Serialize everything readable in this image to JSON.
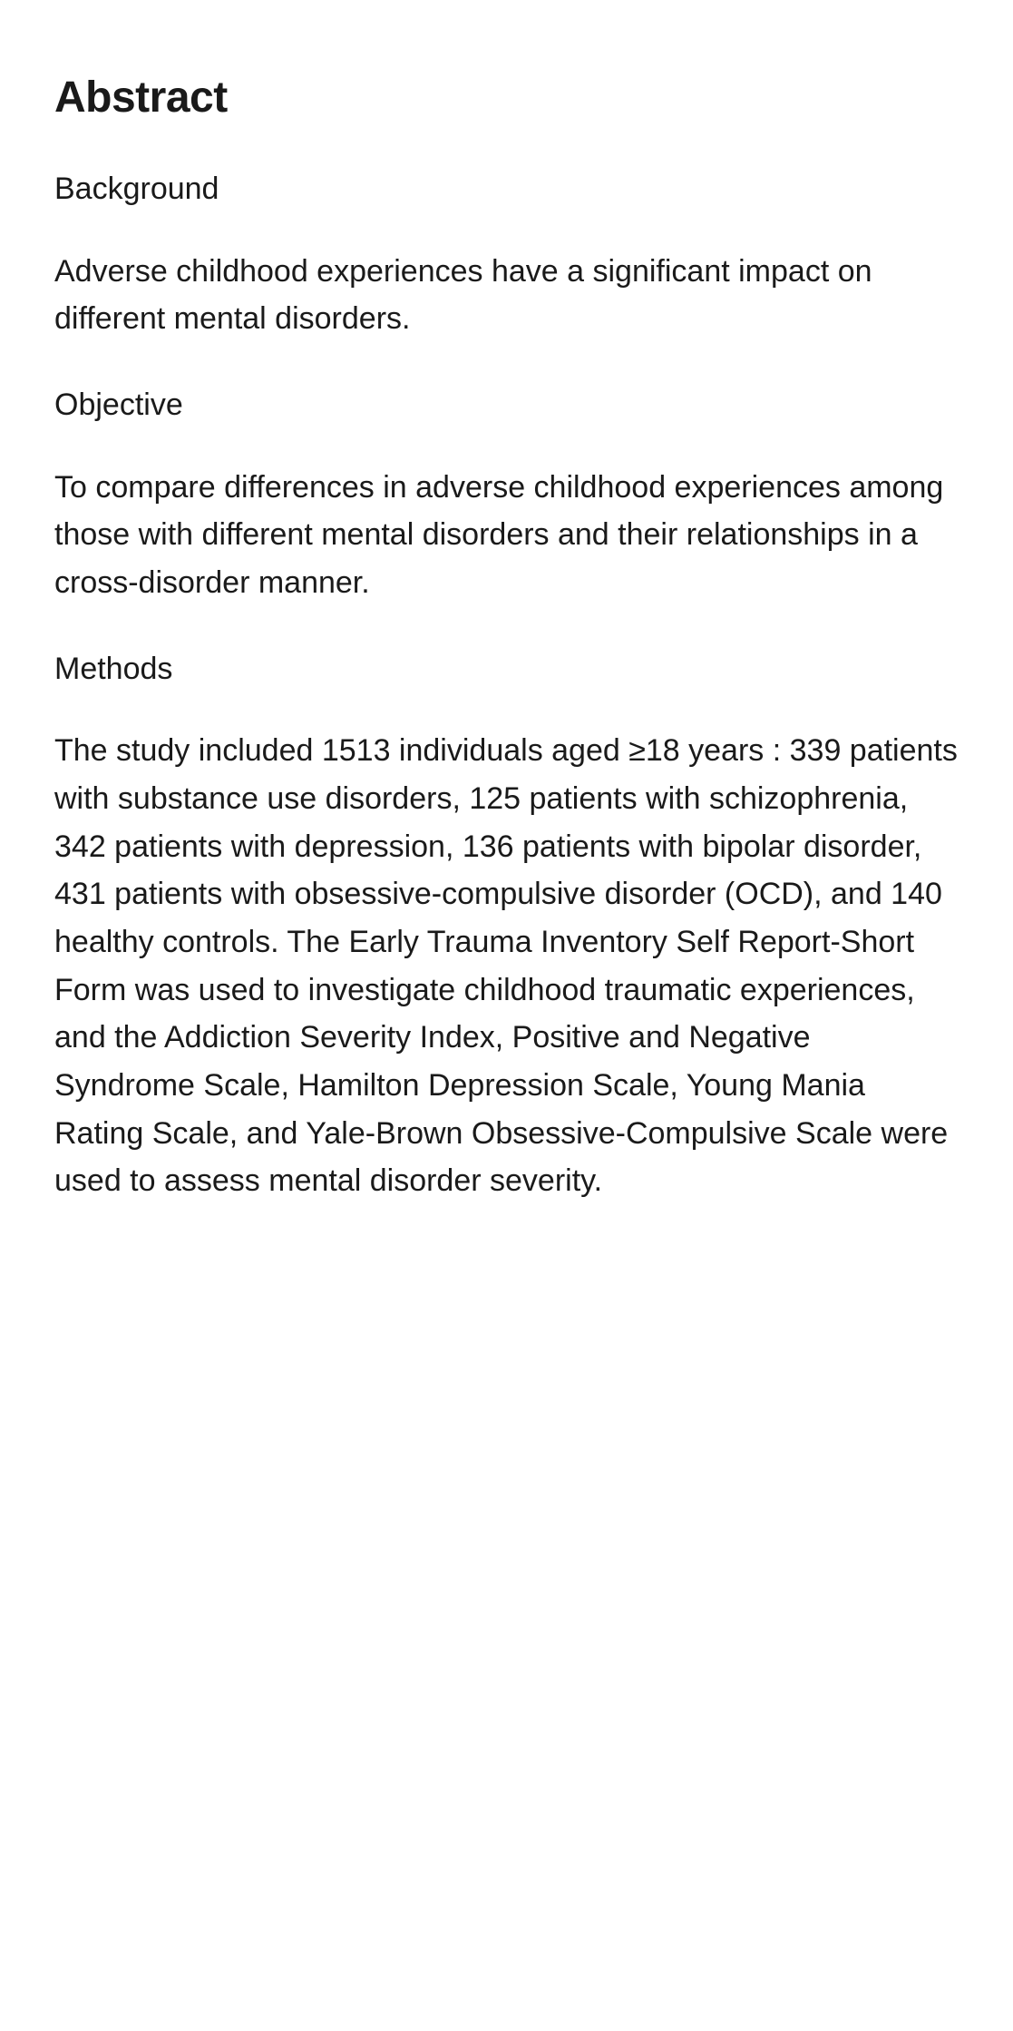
{
  "abstract": {
    "title": "Abstract",
    "sections": {
      "background": {
        "heading": "Background",
        "text": "Adverse childhood experiences have a significant impact on different mental disorders."
      },
      "objective": {
        "heading": "Objective",
        "text": "To compare differences in adverse childhood experiences among those with different mental disorders and their relationships in a cross-disorder manner."
      },
      "methods": {
        "heading": "Methods",
        "text": "The study included 1513 individuals aged ≥18 years : 339 patients with substance use disorders, 125 patients with schizophrenia, 342 patients with depression, 136 patients with bipolar disorder, 431 patients with obsessive-compulsive disorder (OCD), and 140 healthy controls. The Early Trauma Inventory Self Report-Short Form was used to investigate childhood traumatic experiences, and the Addiction Severity Index, Positive and Negative Syndrome Scale, Hamilton Depression Scale, Young Mania Rating Scale, and Yale-Brown Obsessive-Compulsive Scale were used to assess mental disorder severity."
      }
    }
  },
  "typography": {
    "title_fontsize": 48,
    "title_weight": 700,
    "body_fontsize": 34,
    "body_weight": 400,
    "line_height": 1.55
  },
  "colors": {
    "background": "#ffffff",
    "text": "#1a1a1a"
  }
}
